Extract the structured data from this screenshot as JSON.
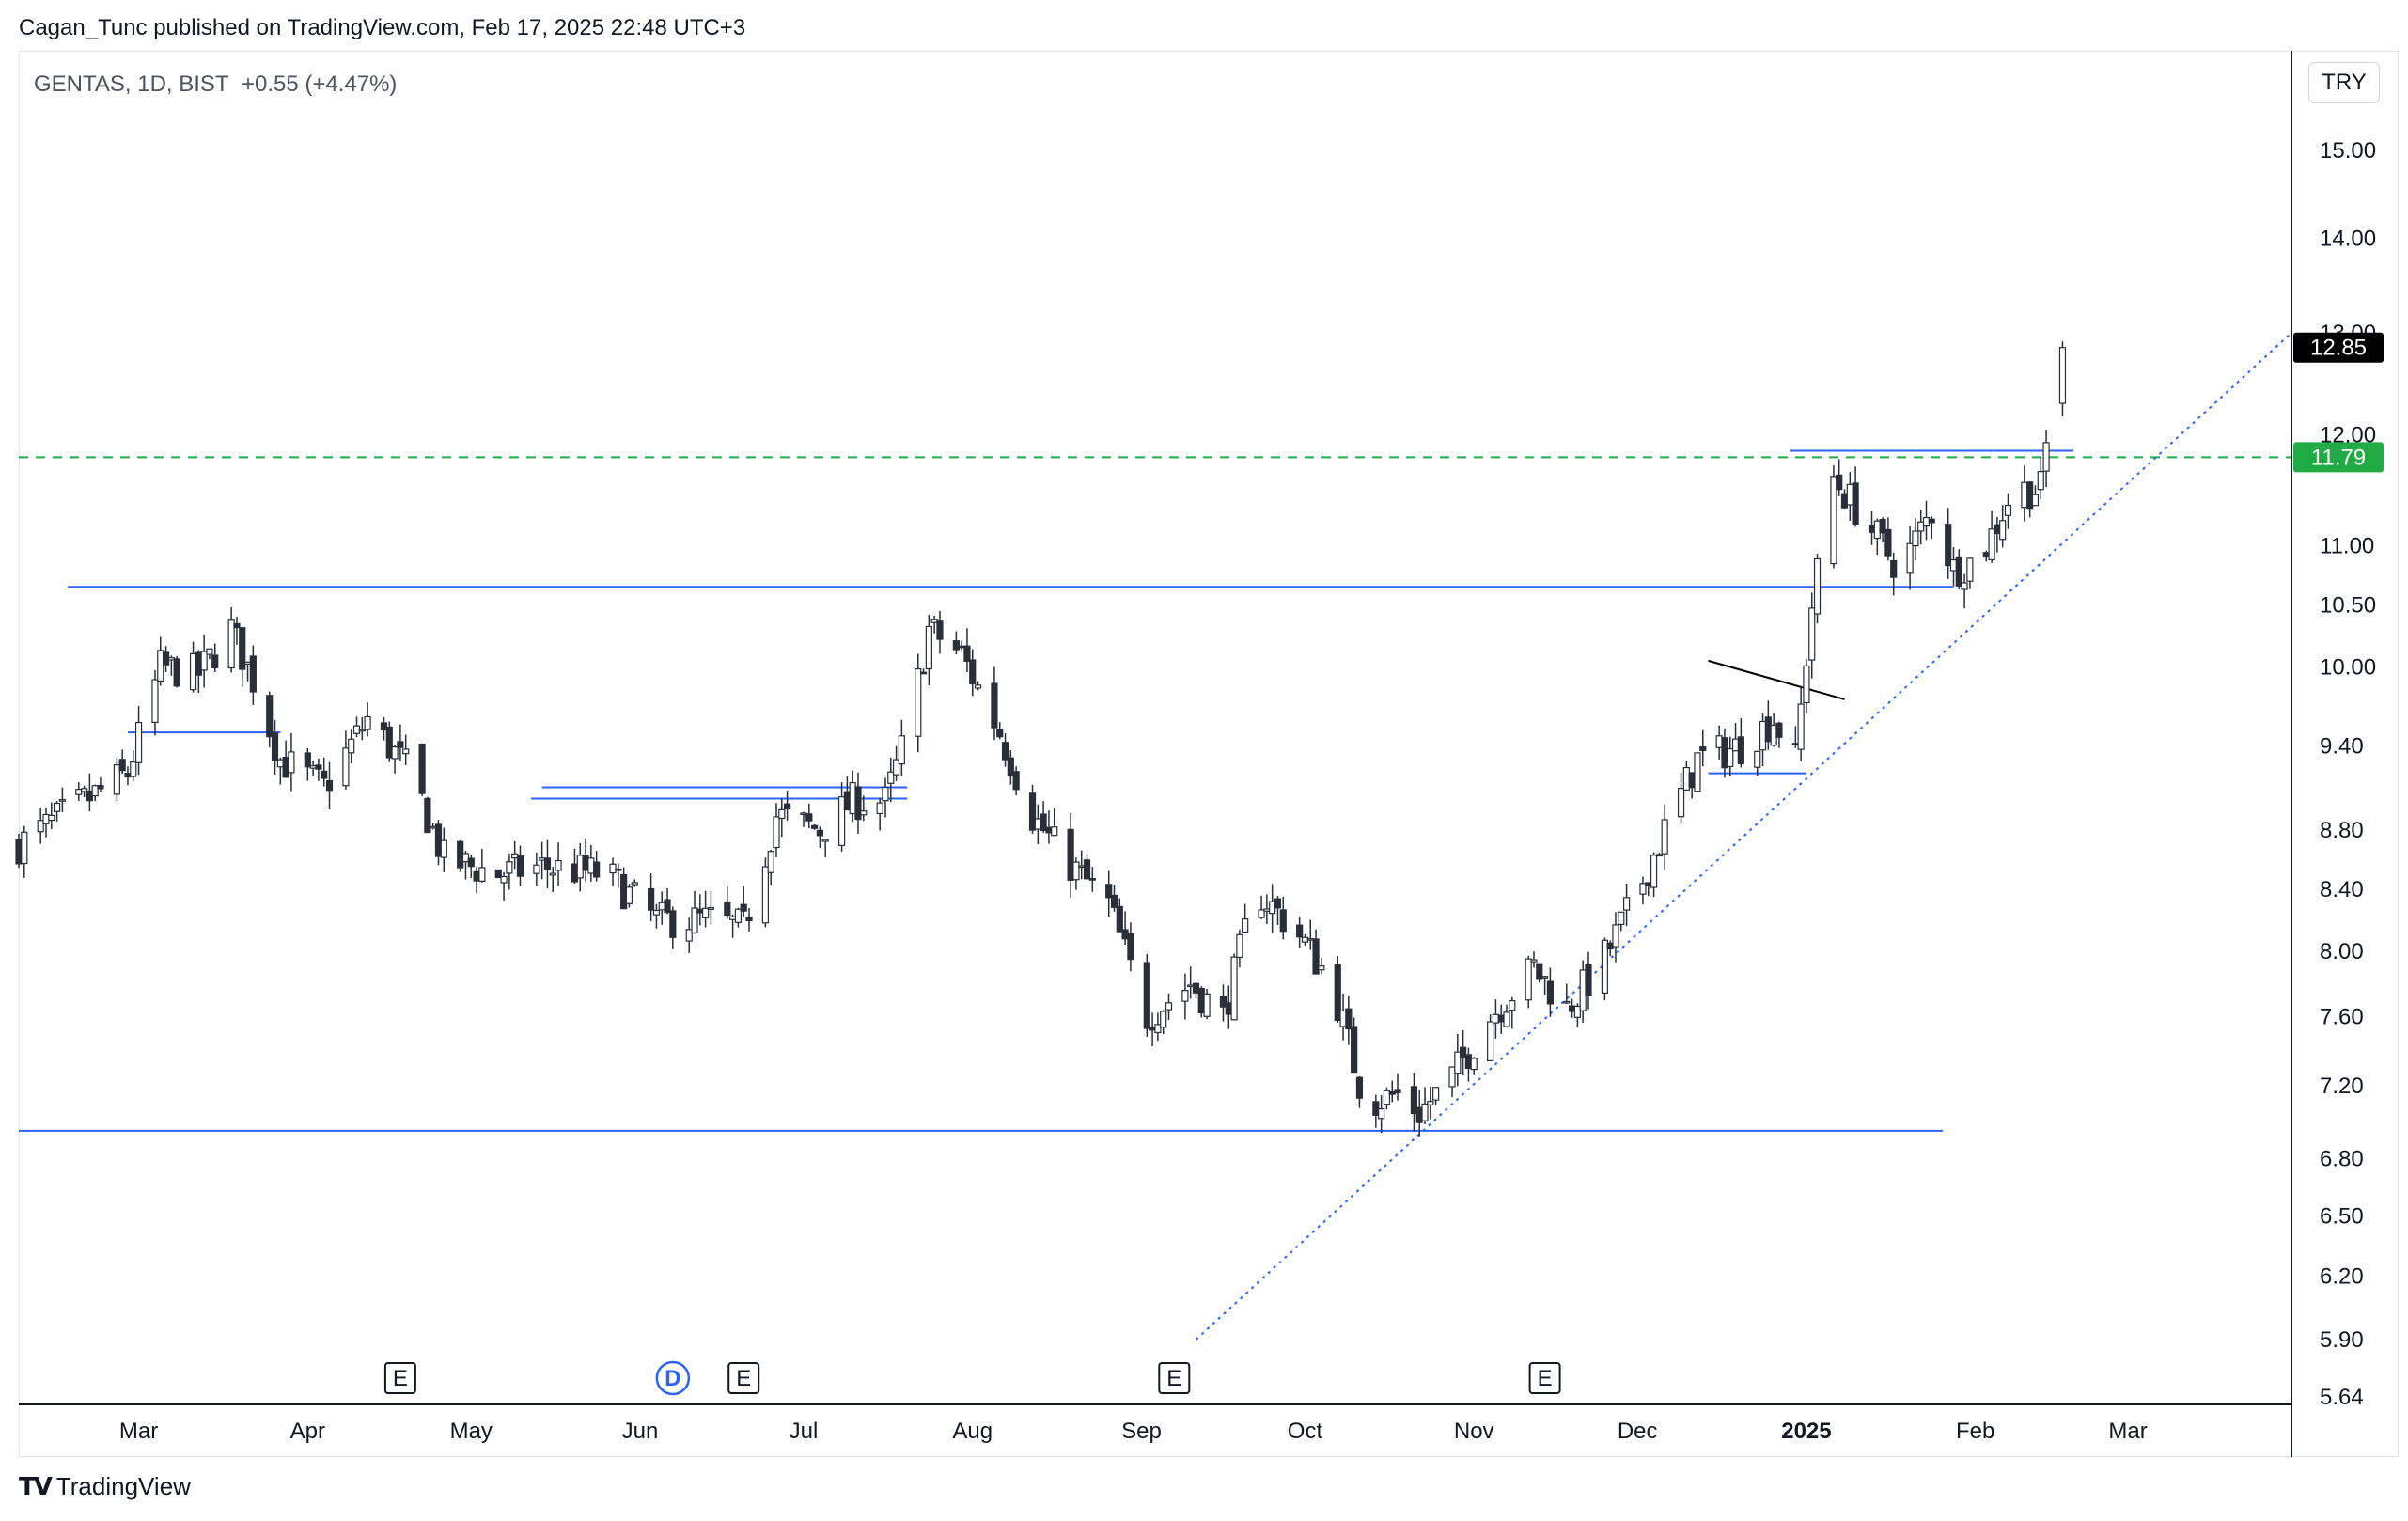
{
  "header": {
    "published": "Cagan_Tunc published on TradingView.com, Feb 17, 2025 22:48 UTC+3"
  },
  "legend": {
    "symbol_text": "GENTAS, 1D, BIST",
    "change_text": "+0.55 (+4.47%)"
  },
  "currency": "TRY",
  "footer": {
    "brand": "TradingView"
  },
  "colors": {
    "candle": "#2a2e39",
    "level_line": "#2962ff",
    "trend_line": "#2962ff",
    "dashed_level": "#22ab44",
    "price_badge": "#000000",
    "green_badge": "#22ab44"
  },
  "chart_data": {
    "type": "candlestick",
    "title": "",
    "symbol": "GENTAS",
    "interval": "1D",
    "exchange": "BIST",
    "currency": "TRY",
    "log_scale": true,
    "ylim": [
      5.64,
      16.0
    ],
    "y_ticks": [
      "15.00",
      "14.00",
      "13.00",
      "12.00",
      "11.00",
      "10.50",
      "10.00",
      "9.40",
      "8.80",
      "8.40",
      "8.00",
      "7.60",
      "7.20",
      "6.80",
      "6.50",
      "6.20",
      "5.90",
      "5.64"
    ],
    "x_ticks": [
      "Mar",
      "Apr",
      "May",
      "Jun",
      "Jul",
      "Aug",
      "Sep",
      "Oct",
      "Nov",
      "Dec",
      "2025",
      "Feb",
      "Mar"
    ],
    "x_range": [
      "2024-02-08",
      "2025-03-31"
    ],
    "last_price": "12.85",
    "marked_level": "11.79",
    "grid": false,
    "horizontal_levels": [
      {
        "from": "2024-02-17",
        "to": "2025-01-28",
        "price": 10.65
      },
      {
        "from": "2024-02-08",
        "to": "2025-01-26",
        "price": 6.95
      },
      {
        "from": "2024-02-28",
        "to": "2024-03-27",
        "price": 9.5
      },
      {
        "from": "2024-05-14",
        "to": "2024-07-20",
        "price": 9.1
      },
      {
        "from": "2024-05-12",
        "to": "2024-07-20",
        "price": 9.02
      },
      {
        "from": "2024-12-29",
        "to": "2025-02-19",
        "price": 11.85
      },
      {
        "from": "2024-12-14",
        "to": "2025-01-01",
        "price": 9.2
      }
    ],
    "trend_lines": [
      {
        "from": {
          "date": "2024-09-11",
          "price": 5.9
        },
        "to": {
          "date": "2025-03-31",
          "price": 13.0
        },
        "style": "dotted"
      },
      {
        "from": {
          "date": "2024-12-14",
          "price": 10.05
        },
        "to": {
          "date": "2025-01-08",
          "price": 9.75
        },
        "style": "solid",
        "color": "#000000"
      }
    ],
    "dashed_level": {
      "price": 11.79
    },
    "event_markers": [
      {
        "date": "2024-04-18",
        "label": "E"
      },
      {
        "date": "2024-06-07",
        "label": "D"
      },
      {
        "date": "2024-06-20",
        "label": "E"
      },
      {
        "date": "2024-09-07",
        "label": "E"
      },
      {
        "date": "2024-11-14",
        "label": "E"
      }
    ],
    "anchors": [
      [
        "2024-02-08",
        8.7
      ],
      [
        "2024-02-20",
        9.0
      ],
      [
        "2024-02-28",
        9.2
      ],
      [
        "2024-03-05",
        10.0
      ],
      [
        "2024-03-12",
        9.95
      ],
      [
        "2024-03-18",
        10.3
      ],
      [
        "2024-03-22",
        9.9
      ],
      [
        "2024-03-27",
        9.3
      ],
      [
        "2024-04-04",
        9.1
      ],
      [
        "2024-04-12",
        9.6
      ],
      [
        "2024-04-20",
        9.2
      ],
      [
        "2024-04-26",
        8.6
      ],
      [
        "2024-05-06",
        8.5
      ],
      [
        "2024-05-14",
        8.55
      ],
      [
        "2024-05-26",
        8.5
      ],
      [
        "2024-06-04",
        8.2
      ],
      [
        "2024-06-14",
        8.2
      ],
      [
        "2024-06-20",
        8.15
      ],
      [
        "2024-06-26",
        8.9
      ],
      [
        "2024-07-04",
        8.8
      ],
      [
        "2024-07-10",
        9.0
      ],
      [
        "2024-07-16",
        9.0
      ],
      [
        "2024-07-20",
        9.5
      ],
      [
        "2024-07-24",
        10.3
      ],
      [
        "2024-07-30",
        10.1
      ],
      [
        "2024-08-06",
        9.5
      ],
      [
        "2024-08-12",
        8.9
      ],
      [
        "2024-08-18",
        8.6
      ],
      [
        "2024-08-26",
        8.3
      ],
      [
        "2024-09-02",
        7.6
      ],
      [
        "2024-09-10",
        7.8
      ],
      [
        "2024-09-16",
        7.6
      ],
      [
        "2024-09-22",
        8.4
      ],
      [
        "2024-09-30",
        8.1
      ],
      [
        "2024-10-06",
        7.8
      ],
      [
        "2024-10-12",
        7.1
      ],
      [
        "2024-10-18",
        7.15
      ],
      [
        "2024-10-22",
        7.05
      ],
      [
        "2024-10-28",
        7.25
      ],
      [
        "2024-11-04",
        7.6
      ],
      [
        "2024-11-12",
        7.9
      ],
      [
        "2024-11-18",
        7.65
      ],
      [
        "2024-11-24",
        7.9
      ],
      [
        "2024-11-30",
        8.3
      ],
      [
        "2024-12-06",
        8.8
      ],
      [
        "2024-12-12",
        9.3
      ],
      [
        "2024-12-20",
        9.4
      ],
      [
        "2024-12-26",
        9.6
      ],
      [
        "2024-12-30",
        9.3
      ],
      [
        "2025-01-02",
        10.5
      ],
      [
        "2025-01-06",
        11.6
      ],
      [
        "2025-01-12",
        11.2
      ],
      [
        "2025-01-18",
        10.8
      ],
      [
        "2025-01-24",
        11.3
      ],
      [
        "2025-01-28",
        10.8
      ],
      [
        "2025-02-02",
        10.9
      ],
      [
        "2025-02-08",
        11.5
      ],
      [
        "2025-02-13",
        11.5
      ],
      [
        "2025-02-15",
        12.3
      ],
      [
        "2025-02-17",
        12.85
      ]
    ]
  }
}
